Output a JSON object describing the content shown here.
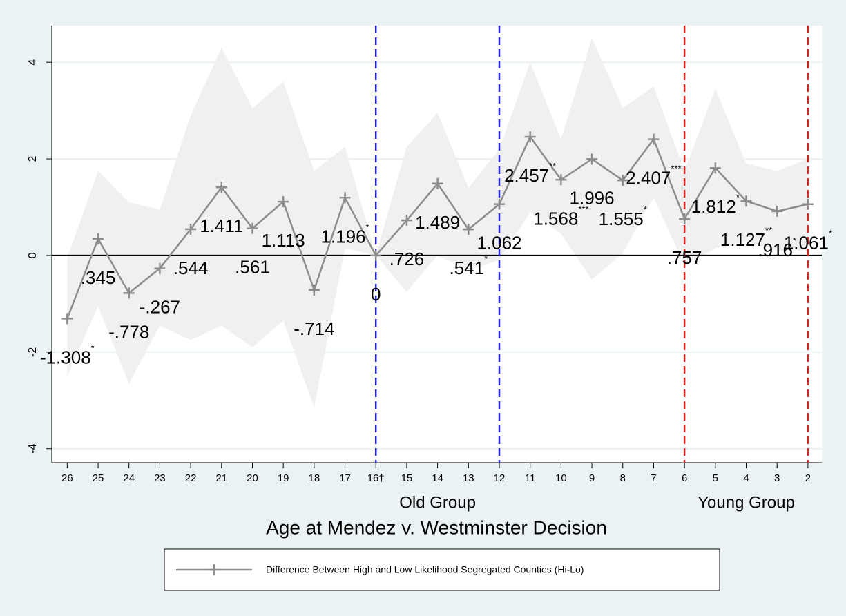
{
  "chart_data": {
    "type": "line",
    "title": "Age at Mendez v. Westminster Decision",
    "x": [
      26,
      25,
      24,
      23,
      22,
      21,
      20,
      19,
      18,
      17,
      16,
      15,
      14,
      13,
      12,
      11,
      10,
      9,
      8,
      7,
      6,
      5,
      4,
      3,
      2
    ],
    "series": [
      {
        "name": "Difference Between High and Low Likelihood Segregated Counties (Hi-Lo)",
        "color": "#8c8c8c",
        "values": [
          -1.308,
          0.345,
          -0.778,
          -0.267,
          0.544,
          1.411,
          0.561,
          1.113,
          -0.714,
          1.196,
          0,
          0.726,
          1.489,
          0.541,
          1.062,
          2.457,
          1.568,
          1.996,
          1.555,
          2.407,
          0.757,
          1.812,
          1.127,
          0.916,
          1.061
        ],
        "value_labels": [
          "-1.308",
          ".345",
          "-.778",
          "-.267",
          ".544",
          "1.411",
          ".561",
          "1.113",
          "-.714",
          "1.196",
          "0",
          ".726",
          "1.489",
          ".541",
          "1.062",
          "2.457",
          "1.568",
          "1.996",
          "1.555",
          "2.407",
          ".757",
          "1.812",
          "1.127",
          ".916",
          "1.061"
        ],
        "significance": [
          "*",
          null,
          null,
          null,
          null,
          null,
          null,
          null,
          null,
          "*",
          null,
          null,
          null,
          "*",
          null,
          "**",
          "***",
          null,
          "*",
          "***",
          null,
          "*",
          "**",
          "*",
          "*"
        ],
        "upper": [
          -0.05,
          1.75,
          1.1,
          0.95,
          2.9,
          4.3,
          3.05,
          3.6,
          1.75,
          2.25,
          0,
          2.25,
          2.95,
          1.4,
          2.2,
          4.0,
          2.4,
          4.5,
          3.05,
          3.5,
          1.75,
          3.45,
          1.9,
          1.75,
          2.0
        ],
        "lower": [
          -2.5,
          -1.05,
          -2.65,
          -1.45,
          -1.75,
          -1.45,
          -1.9,
          -1.35,
          -3.15,
          0.15,
          0,
          -0.75,
          0.0,
          -0.3,
          -0.1,
          0.9,
          0.45,
          -0.5,
          0.05,
          1.2,
          -0.2,
          0.15,
          0.3,
          0.1,
          0.1
        ]
      }
    ],
    "band_color": "#f0f0f0",
    "xlim": [
      26.5,
      1.55
    ],
    "xticks": [
      26,
      25,
      24,
      23,
      22,
      21,
      20,
      19,
      18,
      17,
      {
        "value": 16,
        "label": "16†"
      },
      15,
      14,
      13,
      12,
      11,
      10,
      9,
      8,
      7,
      6,
      5,
      4,
      3,
      2
    ],
    "ylim": [
      -4.29,
      4.76
    ],
    "yticks": [
      -4,
      -2,
      0,
      2,
      4
    ],
    "grid": true,
    "reference_y": 0,
    "groups": [
      {
        "name": "Old Group",
        "color": "#2424e6",
        "x": [
          16,
          12
        ]
      },
      {
        "name": "Young Group",
        "color": "#e3201c",
        "x": [
          6,
          2
        ]
      }
    ],
    "legend": "bottom"
  }
}
